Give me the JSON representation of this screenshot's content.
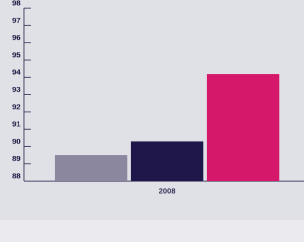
{
  "chart_data": {
    "type": "bar",
    "title": "",
    "xlabel": "",
    "ylabel": "",
    "categories": [
      "2008"
    ],
    "series": [
      {
        "values": [
          89.5
        ],
        "color": "#8b879f"
      },
      {
        "values": [
          90.3
        ],
        "color": "#1f1749"
      },
      {
        "values": [
          94.2
        ],
        "color": "#d6186b"
      }
    ],
    "ylim": [
      88,
      98
    ],
    "yticks": [
      "88",
      "89",
      "90",
      "91",
      "92",
      "93",
      "94",
      "95",
      "96",
      "97",
      "98"
    ],
    "grid": false,
    "legend": "none"
  },
  "colors": {
    "plot_background": "#e0e1e6",
    "page_background": "#ebebef",
    "axis": "#1e1a44"
  }
}
